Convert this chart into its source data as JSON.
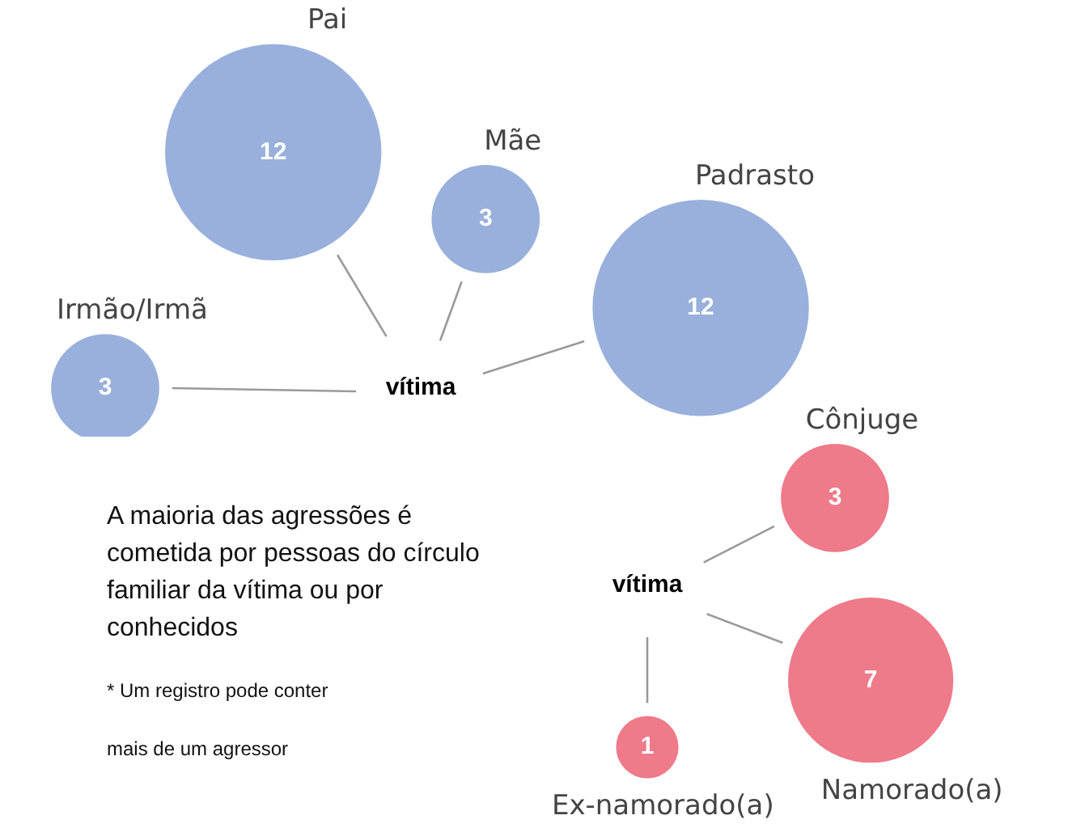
{
  "chart_data": [
    {
      "type": "other",
      "categories": [
        "Irmão/Irmã",
        "Pai",
        "Mãe",
        "Padrasto"
      ],
      "values": [
        3,
        12,
        3,
        12
      ],
      "color": "#98b0db",
      "data_labels": true,
      "annotations": [
        "vítima"
      ]
    },
    {
      "type": "other",
      "categories": [
        "Cônjuge",
        "Namorado(a)",
        "Ex-namorado(a)"
      ],
      "values": [
        3,
        7,
        1
      ],
      "color": "#ee7a8a",
      "data_labels": true,
      "annotations": [
        "vítima"
      ]
    },
    {
      "type": "other",
      "annotations": [
        "A maioria das agressões é cometida por pessoas do círculo familiar da vítima ou por conhecidos",
        "* Um registro pode conter",
        "mais de um agressor"
      ]
    }
  ]
}
